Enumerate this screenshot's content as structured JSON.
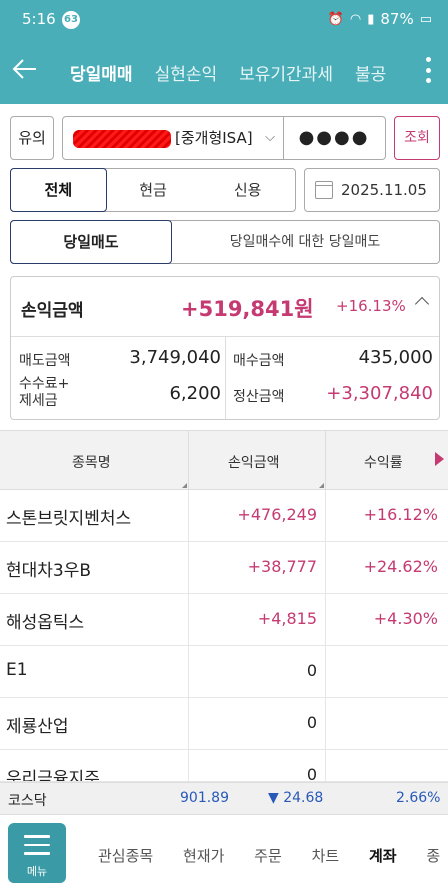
{
  "status": {
    "time": "5:16",
    "badge": "63",
    "battery": "87%"
  },
  "header": {
    "tabs": [
      {
        "label": "당일매매"
      },
      {
        "label": "실현손익"
      },
      {
        "label": "보유기간과세"
      },
      {
        "label": "불공"
      }
    ]
  },
  "account": {
    "type_button": "유의",
    "account_suffix": "[중개형ISA]",
    "password_mask": "●●●●",
    "inquiry_button": "조회"
  },
  "filter": {
    "segments": [
      "전체",
      "현금",
      "신용"
    ],
    "date": "2025.11.05"
  },
  "subtabs": [
    "당일매도",
    "당일매수에 대한 당일매도"
  ],
  "summary": {
    "pl_label": "손익금액",
    "pl_amount": "+519,841원",
    "pl_rate": "+16.13%",
    "sell_label": "매도금액",
    "sell_value": "3,749,040",
    "buy_label": "매수금액",
    "buy_value": "435,000",
    "fee_label_1": "수수료+",
    "fee_label_2": "제세금",
    "fee_value": "6,200",
    "settle_label": "정산금액",
    "settle_value": "+3,307,840"
  },
  "table": {
    "headers": [
      "종목명",
      "손익금액",
      "수익률"
    ],
    "rows": [
      {
        "name": "스톤브릿지벤처스",
        "pl": "+476,249",
        "rate": "+16.12%"
      },
      {
        "name": "현대차3우B",
        "pl": "+38,777",
        "rate": "+24.62%"
      },
      {
        "name": "해성옵틱스",
        "pl": "+4,815",
        "rate": "+4.30%"
      },
      {
        "name": "E1",
        "pl": "0",
        "rate": ""
      },
      {
        "name": "제룡산업",
        "pl": "0",
        "rate": ""
      },
      {
        "name": "우리금융지주",
        "pl": "0",
        "rate": ""
      }
    ]
  },
  "index": {
    "name": "코스닥",
    "value": "901.89",
    "change": "▼ 24.68",
    "rate": "2.66%"
  },
  "bottom_nav": {
    "menu_label": "메뉴",
    "items": [
      "관심종목",
      "현재가",
      "주문",
      "차트",
      "계좌",
      "종"
    ]
  },
  "colors": {
    "teal": "#4aaeb8",
    "accent": "#c53a72",
    "blue": "#2859b8"
  }
}
